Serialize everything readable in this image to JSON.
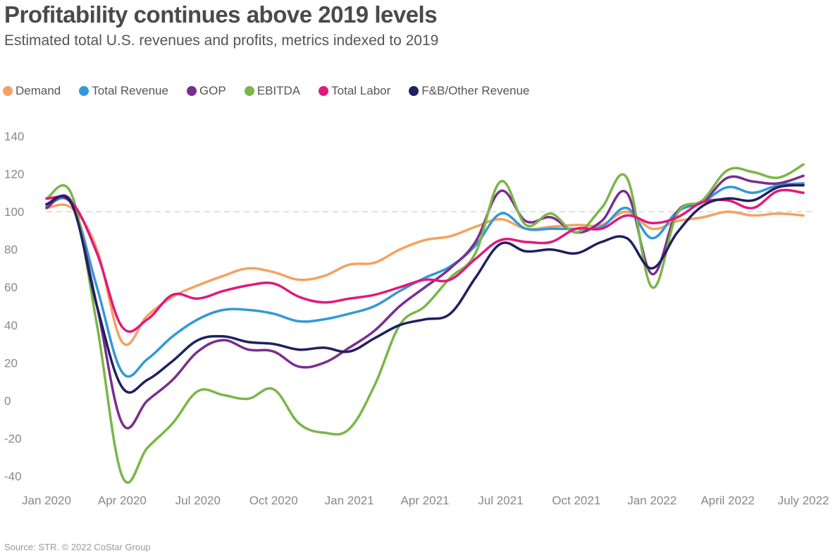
{
  "header": {
    "title": "Profitability continues above 2019 levels",
    "subtitle": "Estimated total U.S. revenues and profits, metrics indexed to 2019"
  },
  "footer": {
    "source": "Source: STR. © 2022 CoStar Group"
  },
  "chart_data": {
    "type": "line",
    "title": "Profitability continues above 2019 levels",
    "subtitle": "Estimated total U.S. revenues and profits, metrics indexed to 2019",
    "xlabel": "",
    "ylabel": "",
    "x_ticks": [
      "Jan 2020",
      "Apr 2020",
      "Jul 2020",
      "Oct 2020",
      "Jan 2021",
      "Apr 2021",
      "Jul 2021",
      "Oct 2021",
      "Jan 2022",
      "April 2022",
      "July 2022"
    ],
    "y_ticks": [
      140,
      120,
      100,
      80,
      60,
      40,
      20,
      0,
      -20,
      -40
    ],
    "ylim": [
      -40,
      140
    ],
    "x_range_months": [
      0,
      30
    ],
    "reference_line": 100,
    "grid": false,
    "legend_position": "top-left",
    "series": [
      {
        "name": "Demand",
        "color": "#f4a261",
        "x": [
          0,
          1,
          2,
          3,
          4,
          5,
          6,
          7,
          8,
          9,
          10,
          11,
          12,
          13,
          14,
          15,
          16,
          17,
          18,
          19,
          20,
          21,
          22,
          23,
          24,
          25,
          26,
          27,
          28,
          29,
          30
        ],
        "values": [
          102,
          102,
          80,
          31,
          45,
          55,
          61,
          66,
          70,
          68,
          64,
          66,
          72,
          73,
          80,
          85,
          87,
          92,
          96,
          91,
          92,
          93,
          93,
          100,
          91,
          95,
          97,
          100,
          98,
          99,
          98
        ]
      },
      {
        "name": "Total Revenue",
        "color": "#3399d6",
        "x": [
          0,
          1,
          2,
          3,
          4,
          5,
          6,
          7,
          8,
          9,
          10,
          11,
          12,
          13,
          14,
          15,
          16,
          17,
          18,
          19,
          20,
          21,
          22,
          23,
          24,
          25,
          26,
          27,
          28,
          29,
          30
        ],
        "values": [
          103,
          104,
          60,
          15,
          22,
          34,
          43,
          48,
          48,
          46,
          42,
          43,
          46,
          50,
          58,
          65,
          71,
          82,
          99,
          91,
          91,
          91,
          92,
          102,
          86,
          100,
          105,
          113,
          110,
          114,
          115
        ]
      },
      {
        "name": "GOP",
        "color": "#7b2d8e",
        "x": [
          0,
          1,
          2,
          3,
          4,
          5,
          6,
          7,
          8,
          9,
          10,
          11,
          12,
          13,
          14,
          15,
          16,
          17,
          18,
          19,
          20,
          21,
          22,
          23,
          24,
          25,
          26,
          27,
          28,
          29,
          30
        ],
        "values": [
          102,
          105,
          50,
          -12,
          0,
          11,
          26,
          32,
          27,
          26,
          18,
          20,
          28,
          37,
          50,
          60,
          70,
          84,
          111,
          95,
          97,
          89,
          95,
          110,
          67,
          100,
          105,
          118,
          116,
          115,
          119
        ]
      },
      {
        "name": "EBITDA",
        "color": "#7ab648",
        "x": [
          0,
          1,
          2,
          3,
          4,
          5,
          6,
          7,
          8,
          9,
          10,
          11,
          12,
          13,
          14,
          15,
          16,
          17,
          18,
          19,
          20,
          21,
          22,
          23,
          24,
          25,
          26,
          27,
          28,
          29,
          30
        ],
        "values": [
          107,
          109,
          40,
          -40,
          -25,
          -12,
          5,
          3,
          1,
          6,
          -12,
          -17,
          -15,
          8,
          40,
          50,
          65,
          78,
          116,
          93,
          99,
          89,
          102,
          118,
          60,
          99,
          106,
          122,
          121,
          118,
          125
        ]
      },
      {
        "name": "Total Labor",
        "color": "#e0197d",
        "x": [
          0,
          1,
          2,
          3,
          4,
          5,
          6,
          7,
          8,
          9,
          10,
          11,
          12,
          13,
          14,
          15,
          16,
          17,
          18,
          19,
          20,
          21,
          22,
          23,
          24,
          25,
          26,
          27,
          28,
          29,
          30
        ],
        "values": [
          107,
          105,
          78,
          39,
          43,
          56,
          54,
          58,
          61,
          62,
          55,
          52,
          54,
          56,
          60,
          64,
          64,
          75,
          85,
          84,
          84,
          91,
          91,
          98,
          94,
          97,
          105,
          106,
          102,
          111,
          110
        ]
      },
      {
        "name": "F&B/Other Revenue",
        "color": "#1f2060",
        "x": [
          0,
          1,
          2,
          3,
          4,
          5,
          6,
          7,
          8,
          9,
          10,
          11,
          12,
          13,
          14,
          15,
          16,
          17,
          18,
          19,
          20,
          21,
          22,
          23,
          24,
          25,
          26,
          27,
          28,
          29,
          30
        ],
        "values": [
          104,
          104,
          50,
          7,
          11,
          21,
          32,
          34,
          31,
          30,
          27,
          28,
          26,
          33,
          40,
          43,
          46,
          65,
          83,
          79,
          80,
          78,
          84,
          86,
          70,
          89,
          103,
          107,
          106,
          113,
          114
        ]
      }
    ]
  }
}
